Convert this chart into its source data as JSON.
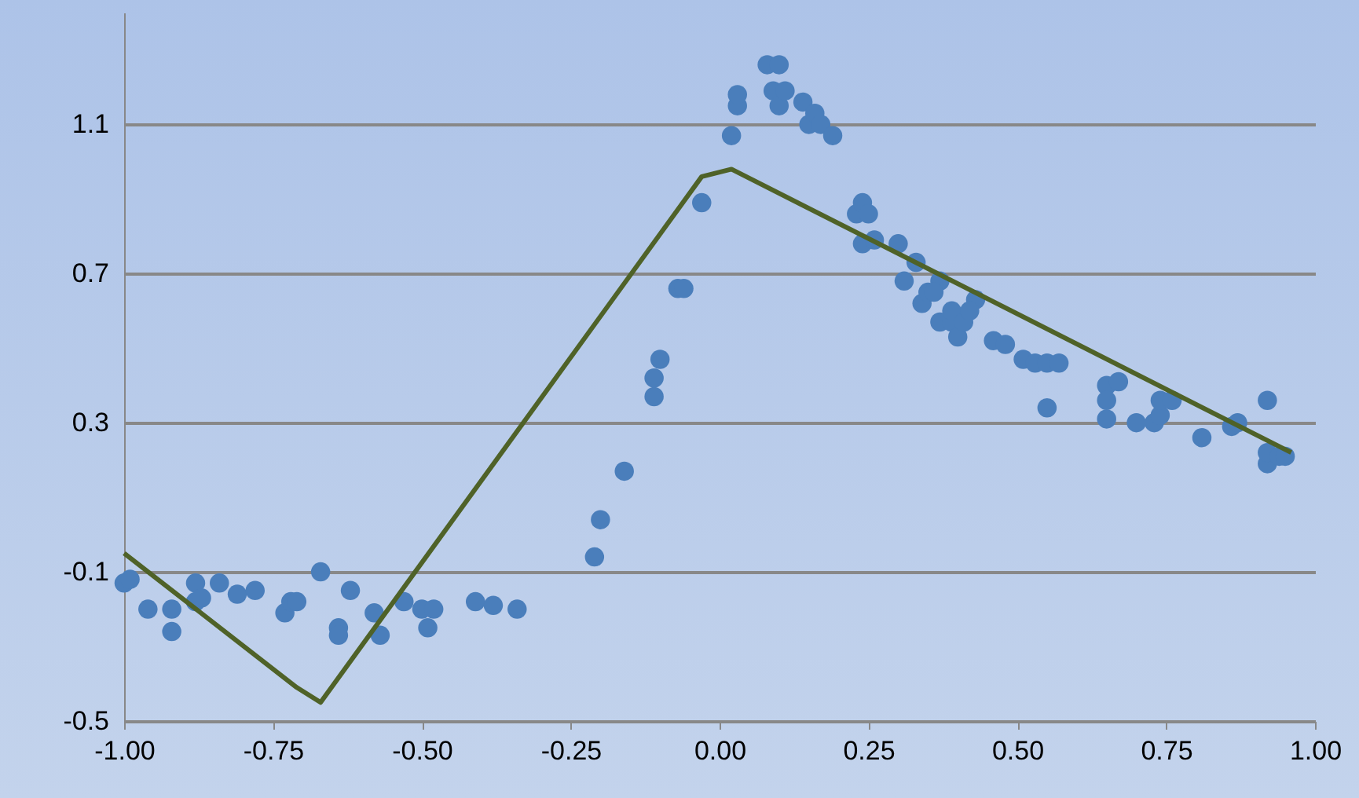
{
  "chart_data": {
    "type": "scatter",
    "xlim": [
      -1,
      1
    ],
    "ylim": [
      -0.5,
      1.4
    ],
    "xticks": [
      {
        "value": -1,
        "label": "-1.00"
      },
      {
        "value": -0.75,
        "label": "-0.75"
      },
      {
        "value": -0.5,
        "label": "-0.50"
      },
      {
        "value": -0.25,
        "label": "-0.25"
      },
      {
        "value": 0,
        "label": "0.00"
      },
      {
        "value": 0.25,
        "label": "0.25"
      },
      {
        "value": 0.5,
        "label": "0.50"
      },
      {
        "value": 0.75,
        "label": "0.75"
      },
      {
        "value": 1,
        "label": "1.00"
      }
    ],
    "yticks": [
      -0.5,
      -0.1,
      0.3,
      0.7,
      1.1
    ],
    "grid": "y",
    "series": [
      {
        "marker": "circle",
        "color": "#4a7ebb",
        "x": [
          -1.0,
          -0.99,
          -0.96,
          -0.92,
          -0.92,
          -0.88,
          -0.88,
          -0.87,
          -0.84,
          -0.81,
          -0.78,
          -0.73,
          -0.72,
          -0.71,
          -0.67,
          -0.64,
          -0.64,
          -0.62,
          -0.58,
          -0.57,
          -0.53,
          -0.5,
          -0.48,
          -0.49,
          -0.41,
          -0.38,
          -0.34,
          -0.21,
          -0.2,
          -0.16,
          -0.11,
          -0.11,
          -0.1,
          -0.07,
          -0.06,
          -0.03,
          0.02,
          0.03,
          0.03,
          0.08,
          0.1,
          0.09,
          0.1,
          0.11,
          0.14,
          0.15,
          0.16,
          0.17,
          0.19,
          0.23,
          0.24,
          0.25,
          0.24,
          0.26,
          0.3,
          0.31,
          0.33,
          0.34,
          0.35,
          0.37,
          0.37,
          0.36,
          0.39,
          0.4,
          0.39,
          0.41,
          0.43,
          0.42,
          0.46,
          0.48,
          0.51,
          0.53,
          0.55,
          0.57,
          0.55,
          0.65,
          0.67,
          0.65,
          0.65,
          0.7,
          0.73,
          0.74,
          0.74,
          0.76,
          0.81,
          0.86,
          0.87,
          0.92,
          0.92,
          0.92,
          0.94,
          0.95
        ],
        "values": [
          -0.13,
          -0.12,
          -0.2,
          -0.2,
          -0.26,
          -0.13,
          -0.18,
          -0.17,
          -0.13,
          -0.16,
          -0.15,
          -0.21,
          -0.18,
          -0.18,
          -0.1,
          -0.25,
          -0.27,
          -0.15,
          -0.21,
          -0.27,
          -0.18,
          -0.2,
          -0.2,
          -0.25,
          -0.18,
          -0.19,
          -0.2,
          -0.06,
          0.04,
          0.17,
          0.37,
          0.42,
          0.47,
          0.66,
          0.66,
          0.89,
          1.07,
          1.15,
          1.18,
          1.26,
          1.26,
          1.19,
          1.15,
          1.19,
          1.16,
          1.1,
          1.13,
          1.1,
          1.07,
          0.86,
          0.89,
          0.86,
          0.78,
          0.79,
          0.78,
          0.68,
          0.73,
          0.62,
          0.65,
          0.68,
          0.57,
          0.65,
          0.57,
          0.53,
          0.6,
          0.57,
          0.63,
          0.6,
          0.52,
          0.51,
          0.47,
          0.46,
          0.46,
          0.46,
          0.34,
          0.4,
          0.41,
          0.36,
          0.31,
          0.3,
          0.3,
          0.32,
          0.36,
          0.36,
          0.26,
          0.29,
          0.3,
          0.19,
          0.22,
          0.36,
          0.21,
          0.21
        ]
      },
      {
        "type": "line",
        "marker": "none",
        "color": "#4f6228",
        "x": [
          -1.0,
          -0.71,
          -0.67,
          -0.03,
          0.02,
          0.96
        ],
        "values": [
          -0.05,
          -0.41,
          -0.45,
          0.96,
          0.98,
          0.22
        ]
      }
    ]
  }
}
